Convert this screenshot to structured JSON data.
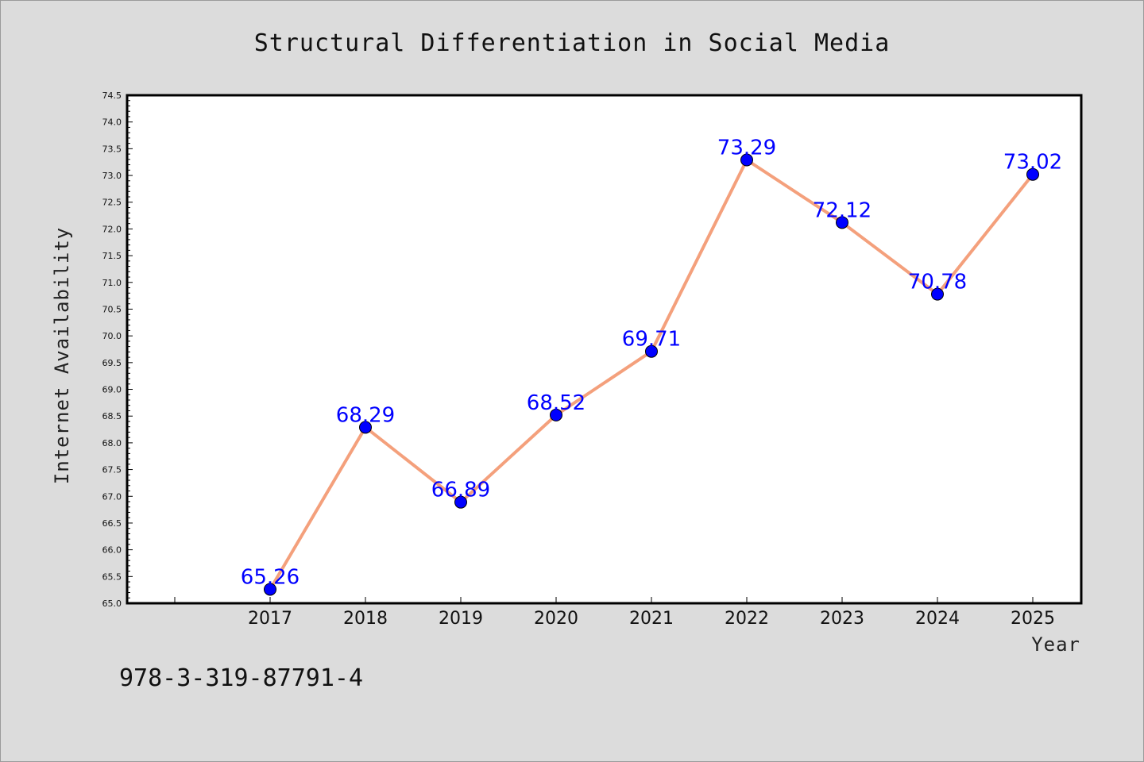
{
  "chart_data": {
    "type": "line",
    "title": "Structural Differentiation in Social Media",
    "xlabel": "Year",
    "ylabel": "Internet Availability",
    "x": [
      "2017",
      "2018",
      "2019",
      "2020",
      "2021",
      "2022",
      "2023",
      "2024",
      "2025"
    ],
    "series": [
      {
        "values": [
          65.26,
          68.29,
          66.89,
          68.52,
          69.71,
          73.29,
          72.12,
          70.78,
          73.02
        ],
        "labels": [
          "65.26",
          "68.29",
          "66.89",
          "68.52",
          "69.71",
          "73.29",
          "72.12",
          "70.78",
          "73.02"
        ],
        "line_color": "#f4a07c",
        "marker_color": "#0000ff"
      }
    ],
    "ylim": [
      65.0,
      74.5
    ],
    "yticks": [
      "65.0",
      "65.5",
      "66.0",
      "66.5",
      "67.0",
      "67.5",
      "68.0",
      "68.5",
      "69.0",
      "69.5",
      "70.0",
      "70.5",
      "71.0",
      "71.5",
      "72.0",
      "72.5",
      "73.0",
      "73.5",
      "74.0",
      "74.5"
    ],
    "grid": false,
    "background": "#dcdcdc",
    "plot_background": "#ffffff"
  },
  "annotation": {
    "isbn": "978-3-319-87791-4"
  }
}
